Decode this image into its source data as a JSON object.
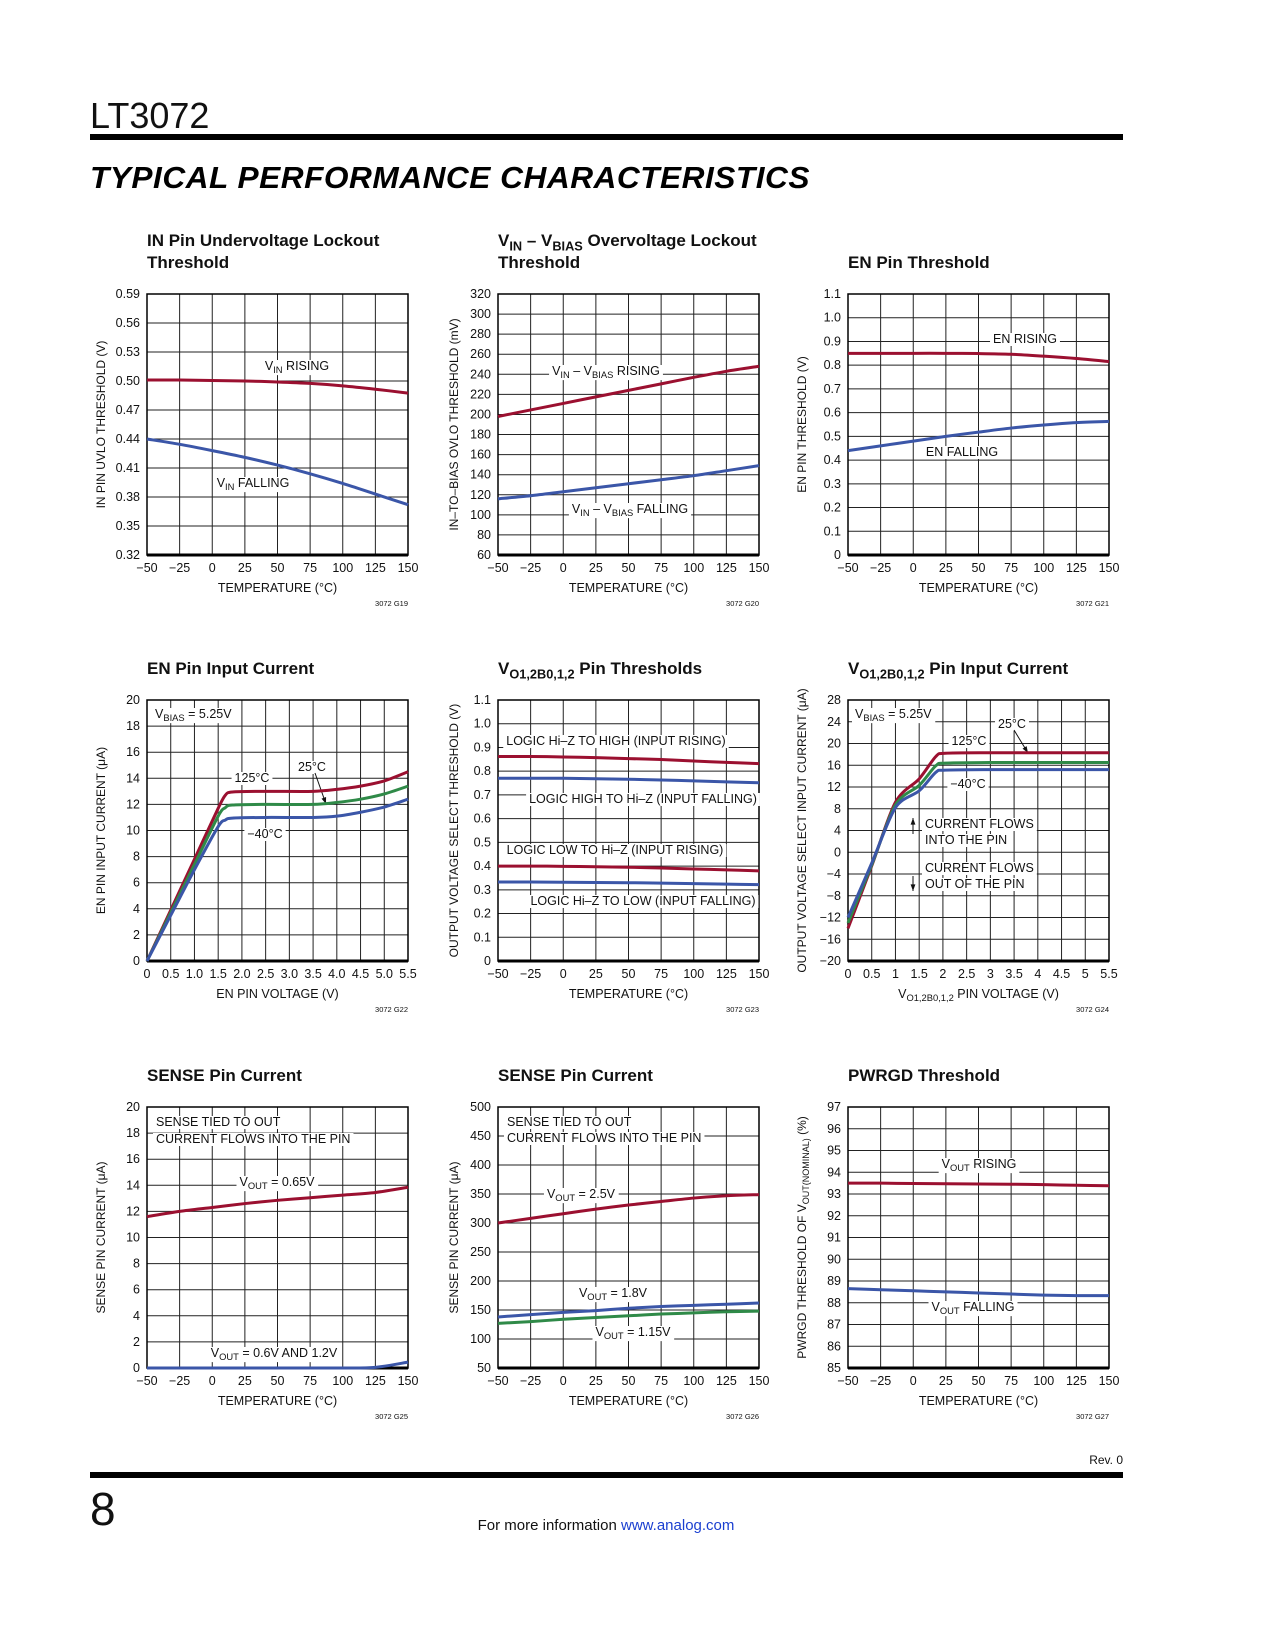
{
  "header": {
    "part_number": "LT3072",
    "section_title": "TYPICAL PERFORMANCE CHARACTERISTICS"
  },
  "footer": {
    "revision": "Rev. 0",
    "page_number": "8",
    "more_info": "For more information",
    "link": "www.analog.com"
  },
  "colors": {
    "red": "#9b1030",
    "blue": "#3b56a8",
    "green": "#2f8a48",
    "link": "#1a3fd0"
  },
  "chart_data": [
    {
      "type": "line",
      "figure_id": "3072 G19",
      "title": [
        "IN Pin Undervoltage Lockout",
        "Threshold"
      ],
      "xlabel": "TEMPERATURE (°C)",
      "ylabel": "IN PIN UVLO THRESHOLD (V)",
      "xlim": [
        -50,
        150
      ],
      "ylim": [
        0.32,
        0.59
      ],
      "grid": true,
      "xticks": [
        "−50",
        "−25",
        "0",
        "25",
        "50",
        "75",
        "100",
        "125",
        "150"
      ],
      "yticks": [
        "0.32",
        "0.35",
        "0.38",
        "0.41",
        "0.44",
        "0.47",
        "0.50",
        "0.53",
        "0.56",
        "0.59"
      ],
      "x": [
        -50,
        -25,
        0,
        25,
        50,
        75,
        100,
        125,
        150
      ],
      "series": [
        {
          "name": "V_{IN} RISING",
          "color": "red",
          "values": [
            0.501,
            0.501,
            0.5005,
            0.5,
            0.499,
            0.4975,
            0.495,
            0.4915,
            0.4875
          ]
        },
        {
          "name": "V_{IN} FALLING",
          "color": "blue",
          "values": [
            0.44,
            0.4345,
            0.428,
            0.421,
            0.413,
            0.404,
            0.394,
            0.383,
            0.372
          ]
        }
      ],
      "annotations": [
        "V_{IN} RISING",
        "V_{IN} FALLING"
      ]
    },
    {
      "type": "line",
      "figure_id": "3072 G20",
      "title": [
        "V_{IN} – V_{BIAS} Overvoltage Lockout",
        "Threshold"
      ],
      "xlabel": "TEMPERATURE (°C)",
      "ylabel": "IN–TO–BIAS OVLO THRESHOLD (mV)",
      "xlim": [
        -50,
        150
      ],
      "ylim": [
        60,
        320
      ],
      "grid": true,
      "xticks": [
        "−50",
        "−25",
        "0",
        "25",
        "50",
        "75",
        "100",
        "125",
        "150"
      ],
      "yticks": [
        "60",
        "80",
        "100",
        "120",
        "140",
        "160",
        "180",
        "200",
        "220",
        "240",
        "260",
        "280",
        "300",
        "320"
      ],
      "x": [
        -50,
        -25,
        0,
        25,
        50,
        75,
        100,
        125,
        150
      ],
      "series": [
        {
          "name": "V_{IN} – V_{BIAS} RISING",
          "color": "red",
          "values": [
            198,
            204.5,
            211,
            217.5,
            224,
            230.5,
            237,
            243,
            248
          ]
        },
        {
          "name": "V_{IN} – V_{BIAS} FALLING",
          "color": "blue",
          "values": [
            116,
            119,
            123,
            127,
            131,
            135,
            139,
            144,
            149
          ]
        }
      ],
      "annotations": [
        "V_{IN} – V_{BIAS} RISING",
        "V_{IN} – V_{BIAS} FALLING"
      ]
    },
    {
      "type": "line",
      "figure_id": "3072 G21",
      "title": [
        "EN Pin Threshold"
      ],
      "xlabel": "TEMPERATURE (°C)",
      "ylabel": "EN PIN THRESHOLD (V)",
      "xlim": [
        -50,
        150
      ],
      "ylim": [
        0,
        1.1
      ],
      "grid": true,
      "xticks": [
        "−50",
        "−25",
        "0",
        "25",
        "50",
        "75",
        "100",
        "125",
        "150"
      ],
      "yticks": [
        "0",
        "0.1",
        "0.2",
        "0.3",
        "0.4",
        "0.5",
        "0.6",
        "0.7",
        "0.8",
        "0.9",
        "1.0",
        "1.1"
      ],
      "x": [
        -50,
        -25,
        0,
        25,
        50,
        75,
        100,
        125,
        150
      ],
      "series": [
        {
          "name": "EN RISING",
          "color": "red",
          "values": [
            0.85,
            0.85,
            0.85,
            0.85,
            0.849,
            0.846,
            0.838,
            0.828,
            0.815
          ]
        },
        {
          "name": "EN FALLING",
          "color": "blue",
          "values": [
            0.44,
            0.46,
            0.48,
            0.5,
            0.518,
            0.535,
            0.548,
            0.558,
            0.563
          ]
        }
      ],
      "annotations": [
        "EN RISING",
        "EN FALLING"
      ]
    },
    {
      "type": "line",
      "figure_id": "3072 G22",
      "title": [
        "EN Pin Input Current"
      ],
      "xlabel": "EN PIN VOLTAGE (V)",
      "ylabel": "EN PIN INPUT CURRENT (μA)",
      "xlim": [
        0,
        5.5
      ],
      "ylim": [
        0,
        20
      ],
      "grid": true,
      "xticks": [
        "0",
        "0.5",
        "1.0",
        "1.5",
        "2.0",
        "2.5",
        "3.0",
        "3.5",
        "4.0",
        "4.5",
        "5.0",
        "5.5"
      ],
      "yticks": [
        "0",
        "2",
        "4",
        "6",
        "8",
        "10",
        "12",
        "14",
        "16",
        "18",
        "20"
      ],
      "x": [
        0,
        0.5,
        1.0,
        1.5,
        1.65,
        1.8,
        2.5,
        3.5,
        4.0,
        4.5,
        5.0,
        5.5
      ],
      "series": [
        {
          "name": "125°C",
          "color": "red",
          "values": [
            0,
            3.9,
            7.8,
            11.7,
            12.7,
            12.95,
            13.0,
            13.0,
            13.15,
            13.4,
            13.8,
            14.5
          ]
        },
        {
          "name": "25°C",
          "color": "green",
          "values": [
            0,
            3.7,
            7.4,
            11.1,
            11.75,
            11.95,
            12.0,
            12.0,
            12.15,
            12.4,
            12.8,
            13.4
          ]
        },
        {
          "name": "−40°C",
          "color": "blue",
          "values": [
            0,
            3.5,
            7.0,
            10.3,
            10.8,
            10.95,
            11.0,
            11.0,
            11.1,
            11.4,
            11.8,
            12.4
          ]
        }
      ],
      "annotations": [
        "V_{BIAS} = 5.25V",
        "125°C",
        "25°C",
        "−40°C"
      ]
    },
    {
      "type": "line",
      "figure_id": "3072 G23",
      "title": [
        "V_{O1,2B0,1,2} Pin Thresholds"
      ],
      "xlabel": "TEMPERATURE (°C)",
      "ylabel": "OUTPUT VOLTAGE SELECT THRESHOLD (V)",
      "xlim": [
        -50,
        150
      ],
      "ylim": [
        0,
        1.1
      ],
      "grid": true,
      "xticks": [
        "−50",
        "−25",
        "0",
        "25",
        "50",
        "75",
        "100",
        "125",
        "150"
      ],
      "yticks": [
        "0",
        "0.1",
        "0.2",
        "0.3",
        "0.4",
        "0.5",
        "0.6",
        "0.7",
        "0.8",
        "0.9",
        "1.0",
        "1.1"
      ],
      "x": [
        -50,
        -25,
        0,
        25,
        50,
        75,
        100,
        125,
        150
      ],
      "series": [
        {
          "name": "LOGIC Hi–Z TO HIGH (INPUT RISING)",
          "color": "red",
          "values": [
            0.862,
            0.862,
            0.86,
            0.857,
            0.853,
            0.849,
            0.843,
            0.837,
            0.832
          ]
        },
        {
          "name": "LOGIC HIGH TO Hi–Z (INPUT FALLING)",
          "color": "blue",
          "values": [
            0.77,
            0.77,
            0.77,
            0.768,
            0.766,
            0.763,
            0.759,
            0.755,
            0.751
          ]
        },
        {
          "name": "LOGIC LOW TO Hi–Z (INPUT RISING)",
          "color": "red",
          "values": [
            0.4,
            0.4,
            0.399,
            0.397,
            0.395,
            0.392,
            0.388,
            0.384,
            0.38
          ]
        },
        {
          "name": "LOGIC Hi–Z TO LOW (INPUT FALLING)",
          "color": "blue",
          "values": [
            0.333,
            0.333,
            0.332,
            0.331,
            0.33,
            0.328,
            0.326,
            0.324,
            0.322
          ]
        }
      ],
      "annotations": [
        "LOGIC Hi–Z TO HIGH (INPUT RISING)",
        "LOGIC HIGH TO Hi–Z (INPUT FALLING)",
        "LOGIC LOW TO Hi–Z (INPUT RISING)",
        "LOGIC Hi–Z TO LOW (INPUT FALLING)"
      ]
    },
    {
      "type": "line",
      "figure_id": "3072 G24",
      "title": [
        "V_{O1,2B0,1,2} Pin Input Current"
      ],
      "xlabel": "V_{O1,2B0,1,2} PIN VOLTAGE (V)",
      "ylabel": "OUTPUT VOLTAGE SELECT INPUT CURRENT (μA)",
      "xlim": [
        0,
        5.5
      ],
      "ylim": [
        -20,
        28
      ],
      "grid": true,
      "xticks": [
        "0",
        "0.5",
        "1",
        "1.5",
        "2",
        "2.5",
        "3",
        "3.5",
        "4",
        "4.5",
        "5",
        "5.5"
      ],
      "yticks": [
        "−20",
        "−16",
        "−12",
        "−8",
        "−4",
        "0",
        "4",
        "8",
        "12",
        "16",
        "20",
        "24",
        "28"
      ],
      "x": [
        0,
        0.5,
        1.0,
        1.5,
        1.85,
        2.05,
        3,
        4,
        5,
        5.5
      ],
      "series": [
        {
          "name": "125°C",
          "color": "red",
          "values": [
            -14,
            -2.5,
            9.2,
            13.5,
            17.6,
            18.2,
            18.3,
            18.3,
            18.3,
            18.3
          ]
        },
        {
          "name": "25°C",
          "color": "green",
          "values": [
            -13,
            -2.3,
            8.7,
            12.3,
            15.9,
            16.4,
            16.5,
            16.5,
            16.5,
            16.5
          ]
        },
        {
          "name": "−40°C",
          "color": "blue",
          "values": [
            -12,
            -2,
            8.2,
            11.3,
            14.7,
            15.1,
            15.2,
            15.2,
            15.2,
            15.2
          ]
        }
      ],
      "annotations": [
        "V_{BIAS} = 5.25V",
        "125°C",
        "25°C",
        "−40°C",
        "CURRENT FLOWS",
        "INTO THE PIN",
        "CURRENT FLOWS",
        "OUT OF THE PIN"
      ]
    },
    {
      "type": "line",
      "figure_id": "3072 G25",
      "title": [
        "SENSE Pin Current"
      ],
      "xlabel": "TEMPERATURE (°C)",
      "ylabel": "SENSE PIN CURRENT (μA)",
      "xlim": [
        -50,
        150
      ],
      "ylim": [
        0,
        20
      ],
      "grid": true,
      "xticks": [
        "−50",
        "−25",
        "0",
        "25",
        "50",
        "75",
        "100",
        "125",
        "150"
      ],
      "yticks": [
        "0",
        "2",
        "4",
        "6",
        "8",
        "10",
        "12",
        "14",
        "16",
        "18",
        "20"
      ],
      "x": [
        -50,
        -25,
        0,
        25,
        50,
        75,
        100,
        125,
        150
      ],
      "series": [
        {
          "name": "V_{OUT} = 0.65V",
          "color": "red",
          "values": [
            11.6,
            12.0,
            12.3,
            12.6,
            12.85,
            13.05,
            13.25,
            13.45,
            13.85
          ]
        },
        {
          "name": "V_{OUT} = 0.6V AND 1.2V",
          "color": "blue",
          "values": [
            0,
            0,
            0,
            0,
            0,
            0,
            0,
            0.05,
            0.45
          ]
        }
      ],
      "annotations": [
        "SENSE TIED TO OUT",
        "CURRENT FLOWS INTO THE PIN",
        "V_{OUT} = 0.65V",
        "V_{OUT} = 0.6V AND 1.2V"
      ]
    },
    {
      "type": "line",
      "figure_id": "3072 G26",
      "title": [
        "SENSE Pin Current"
      ],
      "xlabel": "TEMPERATURE (°C)",
      "ylabel": "SENSE PIN CURRENT (μA)",
      "xlim": [
        -50,
        150
      ],
      "ylim": [
        50,
        500
      ],
      "grid": true,
      "xticks": [
        "−50",
        "−25",
        "0",
        "25",
        "50",
        "75",
        "100",
        "125",
        "150"
      ],
      "yticks": [
        "50",
        "100",
        "150",
        "200",
        "250",
        "300",
        "350",
        "400",
        "450",
        "500"
      ],
      "x": [
        -50,
        -25,
        0,
        25,
        50,
        75,
        100,
        125,
        150
      ],
      "series": [
        {
          "name": "V_{OUT} = 2.5V",
          "color": "red",
          "values": [
            300,
            308,
            316,
            324,
            331,
            337,
            343,
            347,
            349
          ]
        },
        {
          "name": "V_{OUT} = 1.8V",
          "color": "blue",
          "values": [
            138,
            142,
            146,
            149,
            153,
            156,
            158,
            160,
            162
          ]
        },
        {
          "name": "V_{OUT} = 1.15V",
          "color": "green",
          "values": [
            127,
            130,
            134,
            137,
            140,
            143,
            145,
            147,
            148
          ]
        }
      ],
      "annotations": [
        "SENSE TIED TO OUT",
        "CURRENT FLOWS INTO THE PIN",
        "V_{OUT} = 2.5V",
        "V_{OUT} = 1.8V",
        "V_{OUT} = 1.15V"
      ]
    },
    {
      "type": "line",
      "figure_id": "3072 G27",
      "title": [
        "PWRGD Threshold"
      ],
      "xlabel": "TEMPERATURE (°C)",
      "ylabel": "PWRGD THRESHOLD OF V_{OUT(NOMINAL)} (%)",
      "xlim": [
        -50,
        150
      ],
      "ylim": [
        85,
        97
      ],
      "grid": true,
      "xticks": [
        "−50",
        "−25",
        "0",
        "25",
        "50",
        "75",
        "100",
        "125",
        "150"
      ],
      "yticks": [
        "85",
        "86",
        "87",
        "88",
        "89",
        "90",
        "91",
        "92",
        "93",
        "94",
        "95",
        "96",
        "97"
      ],
      "x": [
        -50,
        -25,
        0,
        25,
        50,
        75,
        100,
        125,
        150
      ],
      "series": [
        {
          "name": "V_{OUT} RISING",
          "color": "red",
          "values": [
            93.5,
            93.5,
            93.48,
            93.47,
            93.46,
            93.45,
            93.43,
            93.4,
            93.38
          ]
        },
        {
          "name": "V_{OUT} FALLING",
          "color": "blue",
          "values": [
            88.65,
            88.6,
            88.55,
            88.5,
            88.45,
            88.4,
            88.35,
            88.33,
            88.33
          ]
        }
      ],
      "annotations": [
        "V_{OUT} RISING",
        "V_{OUT} FALLING"
      ]
    }
  ]
}
